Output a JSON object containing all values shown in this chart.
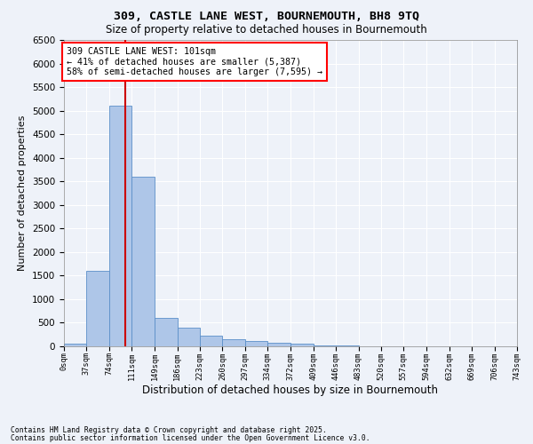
{
  "title": "309, CASTLE LANE WEST, BOURNEMOUTH, BH8 9TQ",
  "subtitle": "Size of property relative to detached houses in Bournemouth",
  "xlabel": "Distribution of detached houses by size in Bournemouth",
  "ylabel": "Number of detached properties",
  "footnote1": "Contains HM Land Registry data © Crown copyright and database right 2025.",
  "footnote2": "Contains public sector information licensed under the Open Government Licence v3.0.",
  "annotation_title": "309 CASTLE LANE WEST: 101sqm",
  "annotation_line1": "← 41% of detached houses are smaller (5,387)",
  "annotation_line2": "58% of semi-detached houses are larger (7,595) →",
  "property_size": 101,
  "bin_edges": [
    0,
    37,
    74,
    111,
    149,
    186,
    223,
    260,
    297,
    334,
    372,
    409,
    446,
    483,
    520,
    557,
    594,
    632,
    669,
    706,
    743
  ],
  "bar_values": [
    50,
    1600,
    5100,
    3600,
    600,
    390,
    220,
    160,
    120,
    80,
    50,
    25,
    15,
    8,
    5,
    3,
    2,
    1,
    1,
    1
  ],
  "bar_color": "#aec6e8",
  "bar_edge_color": "#5b8fc9",
  "vline_x": 101,
  "vline_color": "#cc0000",
  "background_color": "#eef2f9",
  "grid_color": "#ffffff",
  "ylim": [
    0,
    6500
  ],
  "yticks": [
    0,
    500,
    1000,
    1500,
    2000,
    2500,
    3000,
    3500,
    4000,
    4500,
    5000,
    5500,
    6000,
    6500
  ]
}
